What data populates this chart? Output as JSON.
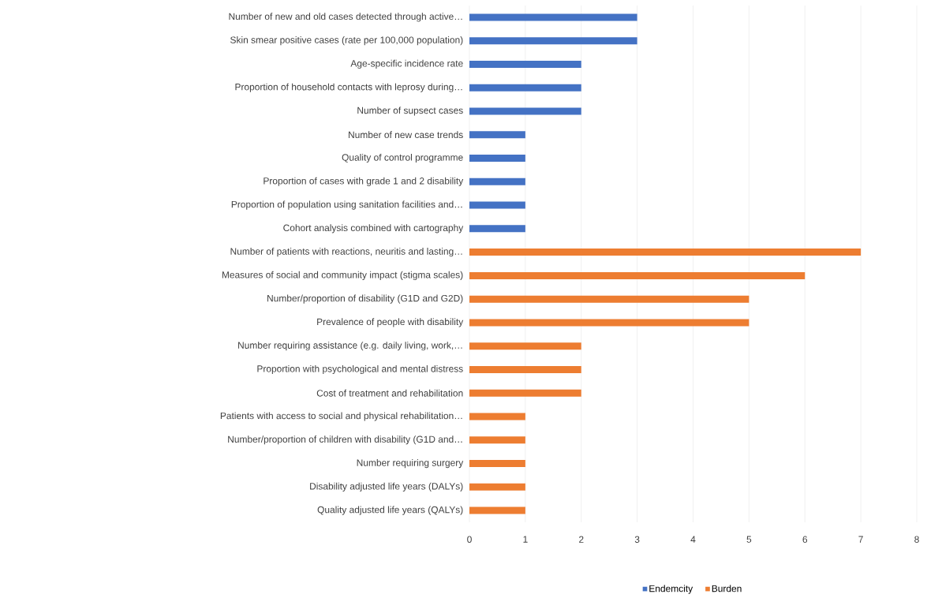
{
  "chart_data": {
    "type": "bar",
    "orientation": "horizontal",
    "categories": [
      "Number of new and old cases detected through active…",
      "Skin smear positive cases (rate per 100,000 population)",
      "Age-specific incidence rate",
      "Proportion of household contacts with leprosy during…",
      "Number of supsect cases",
      "Number of new case trends",
      "Quality of control programme",
      "Proportion of cases with grade 1 and 2 disability",
      "Proportion of population using sanitation facilities and…",
      "Cohort analysis combined with cartography",
      "Number of patients with reactions, neuritis and lasting…",
      "Measures of social and community impact (stigma scales)",
      "Number/proportion of disability (G1D and G2D)",
      "Prevalence of people with disability",
      "Number requiring assistance (e.g. daily living, work,…",
      "Proportion with psychological and mental distress",
      "Cost of treatment and rehabilitation",
      "Patients with access to social and physical rehabilitation…",
      "Number/proportion of children with disability (G1D and…",
      "Number requiring surgery",
      "Disability adjusted life years (DALYs)",
      "Quality adjusted life years (QALYs)"
    ],
    "series": [
      {
        "name": "Endemcity",
        "color": "#4472c4",
        "values": [
          3,
          3,
          2,
          2,
          2,
          1,
          1,
          1,
          1,
          1,
          null,
          null,
          null,
          null,
          null,
          null,
          null,
          null,
          null,
          null,
          null,
          null
        ]
      },
      {
        "name": "Burden",
        "color": "#ed7d31",
        "values": [
          null,
          null,
          null,
          null,
          null,
          null,
          null,
          null,
          null,
          null,
          7,
          6,
          5,
          5,
          2,
          2,
          2,
          1,
          1,
          1,
          1,
          1
        ]
      }
    ],
    "xlim": [
      0,
      8
    ],
    "xticks": [
      0,
      1,
      2,
      3,
      4,
      5,
      6,
      7,
      8
    ],
    "grid": "x",
    "legend": "bottom"
  }
}
